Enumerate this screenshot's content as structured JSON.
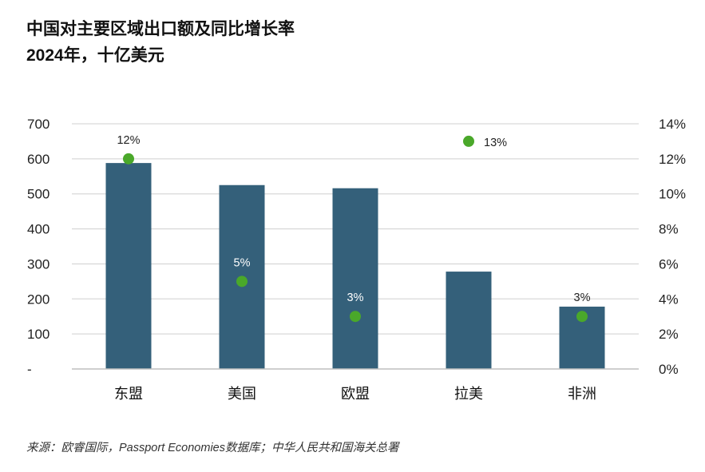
{
  "title_line1": "中国对主要区域出口额及同比增长率",
  "title_line2": "2024年，十亿美元",
  "source": "来源：欧睿国际，Passport Economies数据库；中华人民共和国海关总署",
  "colors": {
    "bar": "#34607a",
    "dot": "#4aa82a",
    "grid": "#d9d9d9",
    "axis": "#bfbfbf"
  },
  "chart_data": {
    "type": "bar",
    "categories": [
      "东盟",
      "美国",
      "欧盟",
      "拉美",
      "非洲"
    ],
    "series": [
      {
        "values": [
          588,
          525,
          516,
          278,
          178
        ],
        "axis": "left",
        "type": "bar"
      },
      {
        "values": [
          12,
          5,
          3,
          13,
          3
        ],
        "axis": "right",
        "type": "scatter",
        "labels": [
          "12%",
          "5%",
          "3%",
          "13%",
          "3%"
        ]
      }
    ],
    "y_left": {
      "ylim": [
        0,
        700
      ],
      "ticks": [
        0,
        100,
        200,
        300,
        400,
        500,
        600,
        700
      ],
      "tick_labels": [
        "-",
        "100",
        "200",
        "300",
        "400",
        "500",
        "600",
        "700"
      ]
    },
    "y_right": {
      "ylim": [
        0,
        14
      ],
      "ticks": [
        0,
        2,
        4,
        6,
        8,
        10,
        12,
        14
      ],
      "tick_labels": [
        "0%",
        "2%",
        "4%",
        "6%",
        "8%",
        "10%",
        "12%",
        "14%"
      ]
    },
    "grid": true
  }
}
